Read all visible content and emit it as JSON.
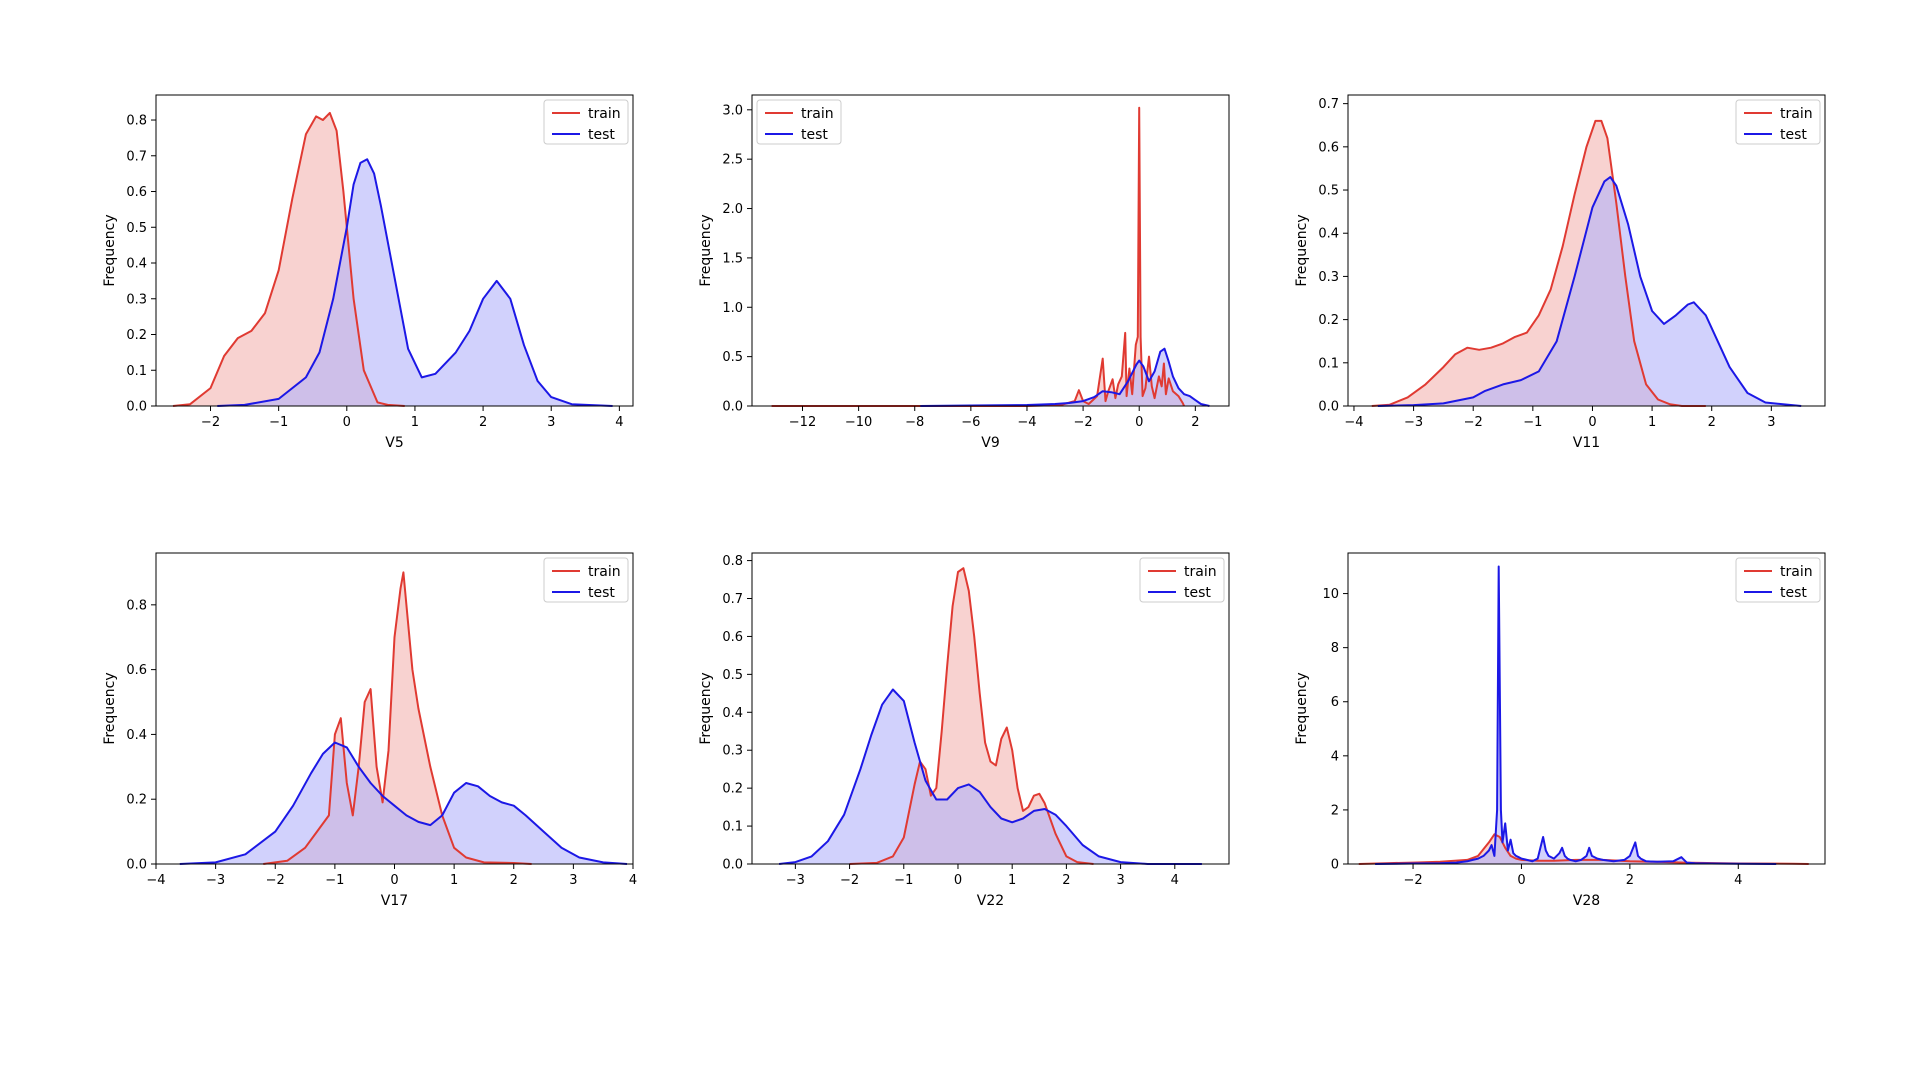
{
  "legend": {
    "train_label": "train",
    "test_label": "test",
    "position": "upper-right"
  },
  "colors": {
    "train_line": "#e03a32",
    "train_fill": "#f4b4b1",
    "test_line": "#1c18e6",
    "test_fill": "#b3b3fa"
  },
  "chart_data": [
    {
      "type": "area",
      "xlabel": "V5",
      "ylabel": "Frequency",
      "xlim": [
        -2.8,
        4.2
      ],
      "ylim": [
        0,
        0.87
      ],
      "xticks": [
        -2,
        -1,
        0,
        1,
        2,
        3,
        4
      ],
      "yticks": [
        0.0,
        0.1,
        0.2,
        0.3,
        0.4,
        0.5,
        0.6,
        0.7,
        0.8
      ],
      "legend_pos": "top-right",
      "series": [
        {
          "name": "train",
          "x": [
            -2.55,
            -2.3,
            -2.0,
            -1.8,
            -1.6,
            -1.4,
            -1.2,
            -1.0,
            -0.8,
            -0.6,
            -0.45,
            -0.35,
            -0.25,
            -0.15,
            -0.05,
            0.1,
            0.25,
            0.45,
            0.6,
            0.85
          ],
          "y": [
            0.0,
            0.005,
            0.05,
            0.14,
            0.19,
            0.21,
            0.26,
            0.38,
            0.58,
            0.76,
            0.81,
            0.8,
            0.82,
            0.77,
            0.6,
            0.3,
            0.1,
            0.01,
            0.003,
            0.0
          ]
        },
        {
          "name": "test",
          "x": [
            -1.9,
            -1.5,
            -1.0,
            -0.6,
            -0.4,
            -0.2,
            0.0,
            0.1,
            0.2,
            0.3,
            0.4,
            0.5,
            0.7,
            0.9,
            1.1,
            1.3,
            1.6,
            1.8,
            2.0,
            2.2,
            2.4,
            2.6,
            2.8,
            3.0,
            3.3,
            3.9
          ],
          "y": [
            0.0,
            0.003,
            0.02,
            0.08,
            0.15,
            0.3,
            0.5,
            0.62,
            0.68,
            0.69,
            0.65,
            0.56,
            0.36,
            0.16,
            0.08,
            0.09,
            0.15,
            0.21,
            0.3,
            0.35,
            0.3,
            0.17,
            0.07,
            0.025,
            0.005,
            0.0
          ]
        }
      ]
    },
    {
      "type": "area",
      "xlabel": "V9",
      "ylabel": "Frequency",
      "xlim": [
        -13.8,
        3.2
      ],
      "ylim": [
        0,
        3.15
      ],
      "xticks": [
        -12,
        -10,
        -8,
        -6,
        -4,
        -2,
        0,
        2
      ],
      "yticks": [
        0.0,
        0.5,
        1.0,
        1.5,
        2.0,
        2.5,
        3.0
      ],
      "legend_pos": "top-left",
      "series": [
        {
          "name": "train",
          "x": [
            -13.1,
            -10,
            -6,
            -4,
            -2.8,
            -2.3,
            -2.15,
            -2.0,
            -1.8,
            -1.5,
            -1.3,
            -1.2,
            -1.1,
            -0.95,
            -0.85,
            -0.75,
            -0.62,
            -0.5,
            -0.45,
            -0.35,
            -0.25,
            -0.12,
            -0.05,
            0.0,
            0.05,
            0.12,
            0.22,
            0.35,
            0.45,
            0.55,
            0.7,
            0.8,
            0.88,
            0.95,
            1.05,
            1.2,
            1.4,
            1.55,
            1.6
          ],
          "y": [
            0.0,
            0.0,
            0.0,
            0.0,
            0.01,
            0.05,
            0.16,
            0.05,
            0.02,
            0.1,
            0.48,
            0.05,
            0.15,
            0.27,
            0.08,
            0.22,
            0.3,
            0.74,
            0.1,
            0.38,
            0.12,
            0.62,
            0.7,
            3.02,
            0.7,
            0.1,
            0.18,
            0.5,
            0.2,
            0.08,
            0.3,
            0.2,
            0.43,
            0.12,
            0.28,
            0.15,
            0.1,
            0.03,
            0.0
          ]
        },
        {
          "name": "test",
          "x": [
            -7.8,
            -6,
            -4,
            -3,
            -2.5,
            -2.0,
            -1.6,
            -1.3,
            -1.0,
            -0.7,
            -0.4,
            -0.1,
            0.0,
            0.15,
            0.35,
            0.55,
            0.75,
            0.9,
            1.05,
            1.2,
            1.4,
            1.6,
            1.8,
            2.0,
            2.2,
            2.5
          ],
          "y": [
            0.0,
            0.005,
            0.01,
            0.02,
            0.03,
            0.05,
            0.09,
            0.15,
            0.14,
            0.12,
            0.25,
            0.42,
            0.46,
            0.4,
            0.25,
            0.35,
            0.55,
            0.58,
            0.45,
            0.3,
            0.18,
            0.12,
            0.1,
            0.06,
            0.02,
            0.0
          ]
        }
      ]
    },
    {
      "type": "area",
      "xlabel": "V11",
      "ylabel": "Frequency",
      "xlim": [
        -4.1,
        3.9
      ],
      "ylim": [
        0,
        0.72
      ],
      "xticks": [
        -4,
        -3,
        -2,
        -1,
        0,
        1,
        2,
        3
      ],
      "yticks": [
        0.0,
        0.1,
        0.2,
        0.3,
        0.4,
        0.5,
        0.6,
        0.7
      ],
      "legend_pos": "top-right",
      "series": [
        {
          "name": "train",
          "x": [
            -3.7,
            -3.4,
            -3.1,
            -2.8,
            -2.5,
            -2.3,
            -2.1,
            -1.9,
            -1.7,
            -1.5,
            -1.3,
            -1.1,
            -0.9,
            -0.7,
            -0.5,
            -0.3,
            -0.1,
            0.05,
            0.15,
            0.25,
            0.4,
            0.55,
            0.7,
            0.9,
            1.1,
            1.3,
            1.5,
            1.9
          ],
          "y": [
            0.0,
            0.003,
            0.02,
            0.05,
            0.09,
            0.12,
            0.135,
            0.13,
            0.135,
            0.145,
            0.16,
            0.17,
            0.21,
            0.27,
            0.37,
            0.49,
            0.6,
            0.66,
            0.66,
            0.62,
            0.47,
            0.3,
            0.15,
            0.05,
            0.015,
            0.004,
            0.0,
            0.0
          ]
        },
        {
          "name": "test",
          "x": [
            -3.6,
            -3.0,
            -2.5,
            -2.0,
            -1.8,
            -1.5,
            -1.2,
            -0.9,
            -0.6,
            -0.3,
            0.0,
            0.2,
            0.3,
            0.4,
            0.6,
            0.8,
            1.0,
            1.2,
            1.4,
            1.6,
            1.7,
            1.9,
            2.1,
            2.3,
            2.6,
            2.9,
            3.5
          ],
          "y": [
            0.0,
            0.002,
            0.006,
            0.02,
            0.035,
            0.05,
            0.06,
            0.08,
            0.15,
            0.3,
            0.46,
            0.52,
            0.53,
            0.51,
            0.42,
            0.3,
            0.22,
            0.19,
            0.21,
            0.235,
            0.24,
            0.21,
            0.15,
            0.09,
            0.03,
            0.008,
            0.0
          ]
        }
      ]
    },
    {
      "type": "area",
      "xlabel": "V17",
      "ylabel": "Frequency",
      "xlim": [
        -4.0,
        4.0
      ],
      "ylim": [
        0,
        0.96
      ],
      "xticks": [
        -4,
        -3,
        -2,
        -1,
        0,
        1,
        2,
        3,
        4
      ],
      "yticks": [
        0.0,
        0.2,
        0.4,
        0.6,
        0.8
      ],
      "legend_pos": "top-right",
      "series": [
        {
          "name": "train",
          "x": [
            -2.2,
            -1.8,
            -1.5,
            -1.3,
            -1.1,
            -1.0,
            -0.9,
            -0.8,
            -0.7,
            -0.6,
            -0.5,
            -0.4,
            -0.3,
            -0.2,
            -0.1,
            0.0,
            0.1,
            0.15,
            0.2,
            0.3,
            0.4,
            0.6,
            0.8,
            1.0,
            1.2,
            1.5,
            2.0,
            2.3
          ],
          "y": [
            0.0,
            0.01,
            0.05,
            0.1,
            0.15,
            0.4,
            0.45,
            0.25,
            0.15,
            0.3,
            0.5,
            0.54,
            0.3,
            0.19,
            0.35,
            0.7,
            0.85,
            0.9,
            0.8,
            0.6,
            0.48,
            0.3,
            0.15,
            0.05,
            0.02,
            0.005,
            0.003,
            0.0
          ]
        },
        {
          "name": "test",
          "x": [
            -3.6,
            -3.0,
            -2.5,
            -2.0,
            -1.7,
            -1.4,
            -1.2,
            -1.0,
            -0.8,
            -0.6,
            -0.4,
            -0.2,
            0.0,
            0.2,
            0.4,
            0.6,
            0.8,
            1.0,
            1.2,
            1.4,
            1.6,
            1.8,
            2.0,
            2.2,
            2.5,
            2.8,
            3.1,
            3.5,
            3.9
          ],
          "y": [
            0.0,
            0.005,
            0.03,
            0.1,
            0.18,
            0.28,
            0.34,
            0.375,
            0.36,
            0.3,
            0.25,
            0.21,
            0.18,
            0.15,
            0.13,
            0.12,
            0.15,
            0.22,
            0.25,
            0.24,
            0.21,
            0.19,
            0.18,
            0.15,
            0.1,
            0.05,
            0.02,
            0.005,
            0.0
          ]
        }
      ]
    },
    {
      "type": "area",
      "xlabel": "V22",
      "ylabel": "Frequency",
      "xlim": [
        -3.8,
        5.0
      ],
      "ylim": [
        0,
        0.82
      ],
      "xticks": [
        -3,
        -2,
        -1,
        0,
        1,
        2,
        3,
        4
      ],
      "yticks": [
        0.0,
        0.1,
        0.2,
        0.3,
        0.4,
        0.5,
        0.6,
        0.7,
        0.8
      ],
      "legend_pos": "top-right",
      "series": [
        {
          "name": "train",
          "x": [
            -2.0,
            -1.5,
            -1.2,
            -1.0,
            -0.8,
            -0.7,
            -0.6,
            -0.5,
            -0.4,
            -0.3,
            -0.2,
            -0.1,
            0.0,
            0.1,
            0.2,
            0.3,
            0.4,
            0.5,
            0.6,
            0.7,
            0.8,
            0.9,
            1.0,
            1.1,
            1.2,
            1.3,
            1.4,
            1.5,
            1.6,
            1.8,
            2.0,
            2.2,
            2.5
          ],
          "y": [
            0.0,
            0.003,
            0.02,
            0.07,
            0.21,
            0.27,
            0.25,
            0.18,
            0.2,
            0.35,
            0.52,
            0.68,
            0.77,
            0.78,
            0.72,
            0.6,
            0.45,
            0.32,
            0.27,
            0.26,
            0.33,
            0.36,
            0.3,
            0.2,
            0.14,
            0.15,
            0.18,
            0.185,
            0.16,
            0.08,
            0.02,
            0.005,
            0.0
          ]
        },
        {
          "name": "test",
          "x": [
            -3.3,
            -3.0,
            -2.7,
            -2.4,
            -2.1,
            -1.8,
            -1.6,
            -1.4,
            -1.2,
            -1.0,
            -0.8,
            -0.6,
            -0.4,
            -0.2,
            0.0,
            0.2,
            0.4,
            0.6,
            0.8,
            1.0,
            1.2,
            1.4,
            1.6,
            1.8,
            2.0,
            2.3,
            2.6,
            3.0,
            3.5,
            4.0,
            4.5
          ],
          "y": [
            0.0,
            0.005,
            0.02,
            0.06,
            0.13,
            0.25,
            0.34,
            0.42,
            0.46,
            0.43,
            0.32,
            0.22,
            0.17,
            0.17,
            0.2,
            0.21,
            0.19,
            0.15,
            0.12,
            0.11,
            0.12,
            0.14,
            0.145,
            0.13,
            0.1,
            0.05,
            0.02,
            0.005,
            0.0,
            0.0,
            0.0
          ]
        }
      ]
    },
    {
      "type": "area",
      "xlabel": "V28",
      "ylabel": "Frequency",
      "xlim": [
        -3.2,
        5.6
      ],
      "ylim": [
        0,
        11.5
      ],
      "xticks": [
        -2,
        0,
        2,
        4
      ],
      "yticks": [
        0,
        2,
        4,
        6,
        8,
        10
      ],
      "legend_pos": "top-right",
      "series": [
        {
          "name": "train",
          "x": [
            -3.0,
            -2.5,
            -2.0,
            -1.5,
            -1.0,
            -0.8,
            -0.6,
            -0.5,
            -0.4,
            -0.3,
            -0.2,
            -0.1,
            0.0,
            0.3,
            0.6,
            1.0,
            1.5,
            2.0,
            2.5,
            3.0,
            4.0,
            5.0,
            5.3
          ],
          "y": [
            0.0,
            0.03,
            0.05,
            0.08,
            0.15,
            0.3,
            0.8,
            1.1,
            1.0,
            0.6,
            0.3,
            0.2,
            0.15,
            0.12,
            0.12,
            0.15,
            0.15,
            0.1,
            0.08,
            0.05,
            0.02,
            0.01,
            0.0
          ]
        },
        {
          "name": "test",
          "x": [
            -2.7,
            -2.0,
            -1.5,
            -1.2,
            -1.0,
            -0.9,
            -0.8,
            -0.7,
            -0.6,
            -0.55,
            -0.5,
            -0.45,
            -0.42,
            -0.38,
            -0.35,
            -0.3,
            -0.25,
            -0.2,
            -0.15,
            -0.1,
            -0.05,
            0.0,
            0.1,
            0.2,
            0.3,
            0.35,
            0.4,
            0.45,
            0.5,
            0.6,
            0.7,
            0.75,
            0.8,
            0.85,
            0.9,
            1.0,
            1.1,
            1.2,
            1.25,
            1.3,
            1.4,
            1.5,
            1.7,
            1.9,
            2.0,
            2.1,
            2.15,
            2.2,
            2.3,
            2.5,
            2.8,
            2.95,
            3.0,
            3.05,
            3.2,
            3.5,
            4.0,
            4.7
          ],
          "y": [
            0.0,
            0.02,
            0.03,
            0.05,
            0.1,
            0.15,
            0.2,
            0.3,
            0.5,
            0.7,
            0.3,
            2.0,
            11.0,
            2.0,
            0.8,
            1.5,
            0.5,
            0.9,
            0.4,
            0.3,
            0.25,
            0.2,
            0.15,
            0.1,
            0.2,
            0.6,
            1.0,
            0.5,
            0.3,
            0.2,
            0.4,
            0.6,
            0.3,
            0.2,
            0.15,
            0.1,
            0.15,
            0.3,
            0.6,
            0.3,
            0.2,
            0.15,
            0.1,
            0.15,
            0.3,
            0.8,
            0.3,
            0.2,
            0.1,
            0.08,
            0.1,
            0.25,
            0.15,
            0.05,
            0.03,
            0.02,
            0.01,
            0.0
          ]
        }
      ]
    }
  ]
}
